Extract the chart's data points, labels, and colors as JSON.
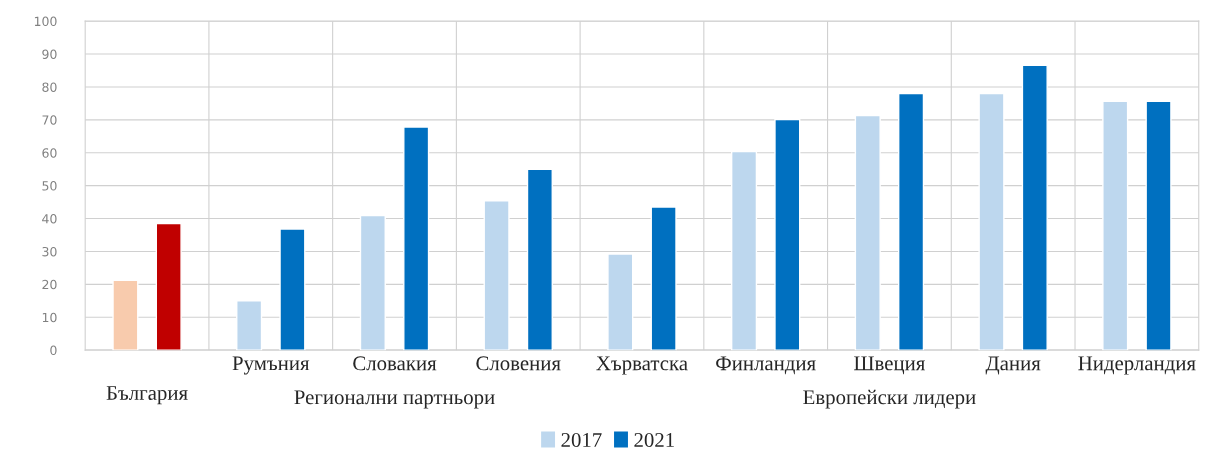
{
  "chart_data": {
    "type": "bar",
    "categories": [
      "България",
      "Румъния",
      "Словакия",
      "Словения",
      "Хърватска",
      "Финландия",
      "Швеция",
      "Дания",
      "Нидерландия"
    ],
    "series": [
      {
        "name": "2017",
        "color": "#bdd7ee",
        "colors": [
          "#f8cbad",
          "#bdd7ee",
          "#bdd7ee",
          "#bdd7ee",
          "#bdd7ee",
          "#bdd7ee",
          "#bdd7ee",
          "#bdd7ee",
          "#bdd7ee"
        ],
        "values": [
          21.2,
          15,
          40.9,
          45.4,
          29.2,
          60.4,
          71.3,
          78,
          75.6
        ]
      },
      {
        "name": "2021",
        "color": "#0070c0",
        "colors": [
          "#c00000",
          "#0070c0",
          "#0070c0",
          "#0070c0",
          "#0070c0",
          "#0070c0",
          "#0070c0",
          "#0070c0",
          "#0070c0"
        ],
        "values": [
          38.5,
          36.8,
          67.8,
          55,
          43.5,
          70.1,
          78,
          86.6,
          75.6
        ]
      }
    ],
    "annotations": [
      "Регионални партньори",
      "Европейски лидери"
    ],
    "ylim": [
      0,
      100
    ],
    "yticks": [
      0,
      10,
      20,
      30,
      40,
      50,
      60,
      70,
      80,
      90,
      100
    ],
    "grid": true,
    "legend": "bottom"
  }
}
